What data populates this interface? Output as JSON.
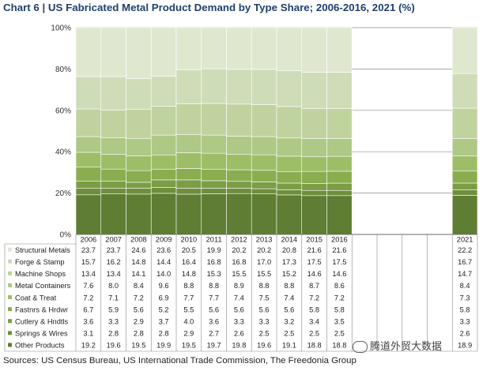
{
  "title": "Chart 6 | US Fabricated Metal Product Demand by Type Share; 2006-2016, 2021 (%)",
  "source": "Sources: US Census Bureau, US International Trade Commission, The Freedonia Group",
  "watermark": "腾道外贸大数据",
  "colors": {
    "title": "#1f3f6e",
    "series": [
      "#dfe8cf",
      "#cfdcb8",
      "#c0d39f",
      "#aec885",
      "#9dbe67",
      "#8aad50",
      "#7c9d45",
      "#6e8e3c",
      "#5f7d33"
    ]
  },
  "chart_data": {
    "type": "bar",
    "stacked": true,
    "ylim": [
      0,
      100
    ],
    "yticks": [
      "0%",
      "20%",
      "40%",
      "60%",
      "80%",
      "100%"
    ],
    "grid": true,
    "legend": "table-below",
    "categories": [
      "2006",
      "2007",
      "2008",
      "2009",
      "2010",
      "2011",
      "2012",
      "2013",
      "2014",
      "2015",
      "2016",
      "2021"
    ],
    "series": [
      {
        "name": "Structural Metals",
        "values": [
          23.7,
          23.7,
          24.6,
          23.6,
          20.5,
          19.9,
          20.2,
          20.2,
          20.8,
          21.6,
          21.6,
          22.2
        ]
      },
      {
        "name": "Forge & Stamp",
        "values": [
          15.7,
          16.2,
          14.8,
          14.4,
          16.4,
          16.8,
          16.8,
          17.0,
          17.3,
          17.5,
          17.5,
          16.7
        ]
      },
      {
        "name": "Machine Shops",
        "values": [
          13.4,
          13.4,
          14.1,
          14.0,
          14.8,
          15.3,
          15.5,
          15.5,
          15.2,
          14.6,
          14.6,
          14.7
        ]
      },
      {
        "name": "Metal Containers",
        "values": [
          7.6,
          8.0,
          8.4,
          9.6,
          8.8,
          8.8,
          8.9,
          8.8,
          8.8,
          8.7,
          8.6,
          8.4
        ]
      },
      {
        "name": "Coat & Treat",
        "values": [
          7.2,
          7.1,
          7.2,
          6.9,
          7.7,
          7.7,
          7.4,
          7.5,
          7.4,
          7.2,
          7.2,
          7.3
        ]
      },
      {
        "name": "Fastnrs & Hrdwr",
        "values": [
          6.7,
          5.9,
          5.6,
          5.2,
          5.5,
          5.6,
          5.6,
          5.6,
          5.6,
          5.8,
          5.8,
          5.8
        ]
      },
      {
        "name": "Cutlery & Hndtls",
        "values": [
          3.6,
          3.3,
          2.9,
          3.7,
          4.0,
          3.6,
          3.3,
          3.3,
          3.2,
          3.4,
          3.5,
          3.3
        ]
      },
      {
        "name": "Springs & Wires",
        "values": [
          3.1,
          2.8,
          2.8,
          2.8,
          2.9,
          2.7,
          2.6,
          2.5,
          2.5,
          2.5,
          2.5,
          2.6
        ]
      },
      {
        "name": "Other Products",
        "values": [
          19.2,
          19.6,
          19.5,
          19.9,
          19.5,
          19.7,
          19.8,
          19.6,
          19.1,
          18.8,
          18.8,
          18.9
        ]
      }
    ]
  }
}
